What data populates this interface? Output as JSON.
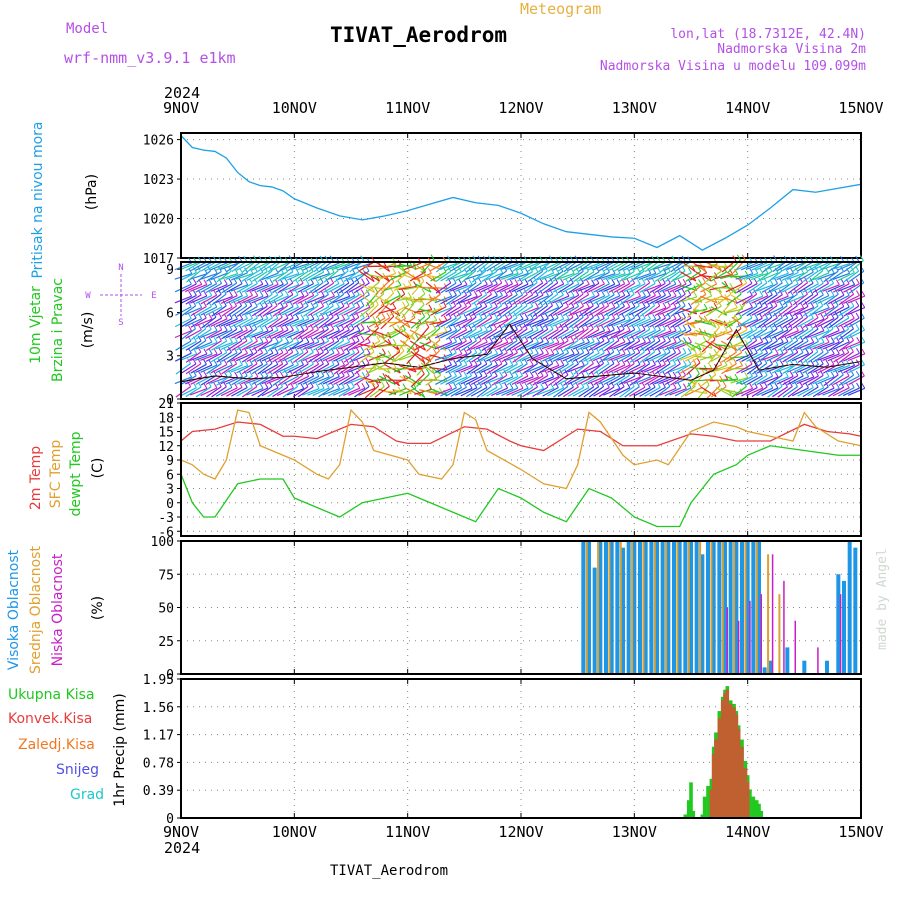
{
  "header": {
    "model_label": "Model",
    "model_name": "wrf-nmm_v3.9.1 e1km",
    "title": "TIVAT_Aerodrom",
    "meteogram": "Meteogram",
    "lonlat": "lon,lat (18.7312E, 42.4N)",
    "elev": "Nadmorska Visina 2m",
    "elev_model": "Nadmorska Visina u modelu 109.099m",
    "footer": "TIVAT_Aerodrom",
    "watermark": "made by Angel"
  },
  "colors": {
    "pressure": "#1ea0e6",
    "temp2m": "#e83c3c",
    "sfc": "#e0a030",
    "dewpt": "#20c820",
    "high": "#1e96e6",
    "mid": "#e0a030",
    "low": "#c81ec8",
    "wind_title": "#20c820",
    "label_purple": "#b450e6",
    "snow": "#5050e6",
    "grad": "#1ec8c8",
    "konvek": "#e83c3c",
    "zaledj": "#f07820"
  },
  "chart_data": [
    {
      "type": "line",
      "panel": "pressure",
      "ylabel": [
        "Pritisak na nivou mora",
        "(hPa)"
      ],
      "ylim": [
        1017,
        1026.5
      ],
      "yticks": [
        "1017",
        "1020",
        "1023",
        "1026"
      ],
      "series": [
        {
          "name": "Pritisak na nivou mora",
          "x": [
            0,
            0.1,
            0.2,
            0.3,
            0.4,
            0.5,
            0.6,
            0.7,
            0.8,
            0.9,
            1.0,
            1.2,
            1.4,
            1.6,
            1.8,
            2.0,
            2.2,
            2.4,
            2.6,
            2.8,
            3.0,
            3.2,
            3.4,
            3.6,
            3.8,
            4.0,
            4.2,
            4.4,
            4.6,
            4.8,
            5.0,
            5.2,
            5.4,
            5.6,
            5.8,
            6.0
          ],
          "values": [
            1026.3,
            1025.4,
            1025.2,
            1025.1,
            1024.6,
            1023.5,
            1022.8,
            1022.5,
            1022.4,
            1022.1,
            1021.5,
            1020.8,
            1020.2,
            1019.9,
            1020.2,
            1020.6,
            1021.1,
            1021.6,
            1021.2,
            1021.0,
            1020.4,
            1019.6,
            1019.0,
            1018.8,
            1018.6,
            1018.5,
            1017.8,
            1018.7,
            1017.6,
            1018.5,
            1019.5,
            1020.8,
            1022.2,
            1022.0,
            1022.3,
            1022.6
          ]
        }
      ]
    },
    {
      "type": "line",
      "panel": "wind",
      "ylabel": [
        "10m Vjetar",
        "Brzina i Pravac",
        "(m/s)"
      ],
      "compass": [
        "N",
        "W",
        "E",
        "S"
      ],
      "ylim": [
        0,
        9.5
      ],
      "yticks": [
        "0",
        "3",
        "6",
        "9"
      ],
      "series": [
        {
          "name": "speed",
          "x": [
            0,
            0.3,
            0.6,
            0.9,
            1.2,
            1.5,
            1.8,
            2.1,
            2.4,
            2.7,
            2.9,
            3.1,
            3.4,
            3.7,
            4.0,
            4.3,
            4.5,
            4.7,
            4.9,
            5.1,
            5.4,
            5.7,
            6.0
          ],
          "values": [
            1.2,
            1.6,
            1.4,
            1.5,
            1.9,
            2.2,
            2.5,
            2.2,
            2.8,
            3.1,
            5.2,
            2.8,
            1.4,
            1.6,
            1.8,
            1.5,
            1.3,
            2.0,
            4.8,
            2.0,
            2.4,
            2.2,
            2.6
          ]
        }
      ]
    },
    {
      "type": "line",
      "panel": "temperature",
      "ylabel": [
        "2m Temp",
        "SFC Temp",
        "dewpt Temp",
        "(C)"
      ],
      "ylim": [
        -7,
        21
      ],
      "yticks": [
        "-6",
        "-3",
        "0",
        "3",
        "6",
        "9",
        "12",
        "15",
        "18",
        "21"
      ],
      "series": [
        {
          "name": "2m Temp",
          "x": [
            0,
            0.1,
            0.3,
            0.5,
            0.7,
            0.9,
            1.0,
            1.2,
            1.5,
            1.7,
            1.9,
            2.0,
            2.2,
            2.5,
            2.7,
            2.9,
            3.0,
            3.2,
            3.5,
            3.7,
            3.9,
            4.0,
            4.2,
            4.5,
            4.7,
            4.9,
            5.0,
            5.2,
            5.5,
            5.7,
            5.9,
            6.0
          ],
          "values": [
            13,
            15,
            15.5,
            17,
            16.5,
            14,
            14,
            13.5,
            16.5,
            16,
            13,
            12.5,
            12.5,
            16,
            15.5,
            13,
            12,
            11,
            15.5,
            15,
            12,
            12,
            12,
            14.5,
            14,
            13,
            13,
            13,
            16.5,
            15,
            14.5,
            14
          ]
        },
        {
          "name": "SFC Temp",
          "x": [
            0,
            0.1,
            0.2,
            0.3,
            0.4,
            0.5,
            0.6,
            0.7,
            1.0,
            1.2,
            1.3,
            1.4,
            1.5,
            1.6,
            1.7,
            2.0,
            2.1,
            2.3,
            2.4,
            2.5,
            2.6,
            2.7,
            3.0,
            3.2,
            3.4,
            3.5,
            3.6,
            3.7,
            3.9,
            4.0,
            4.2,
            4.3,
            4.5,
            4.7,
            4.9,
            5.0,
            5.2,
            5.4,
            5.5,
            5.6,
            5.8,
            6.0
          ],
          "values": [
            9,
            8,
            6,
            5,
            9,
            19.5,
            19,
            12,
            9,
            6,
            5,
            8,
            19.5,
            17,
            11,
            9,
            6,
            5,
            8,
            19,
            17.5,
            11,
            7,
            4,
            3,
            8,
            19,
            17,
            10,
            8,
            9,
            8,
            15,
            17,
            16,
            15,
            14,
            13,
            19,
            16,
            13,
            12
          ]
        },
        {
          "name": "dewpt Temp",
          "x": [
            0,
            0.1,
            0.2,
            0.3,
            0.5,
            0.7,
            0.9,
            1.0,
            1.2,
            1.4,
            1.6,
            1.8,
            2.0,
            2.2,
            2.4,
            2.6,
            2.8,
            3.0,
            3.2,
            3.4,
            3.6,
            3.8,
            4.0,
            4.2,
            4.4,
            4.5,
            4.7,
            4.9,
            5.0,
            5.2,
            5.5,
            5.8,
            6.0
          ],
          "values": [
            6,
            0,
            -3,
            -3,
            4,
            5,
            5,
            1,
            -1,
            -3,
            0,
            1,
            2,
            0,
            -2,
            -4,
            3,
            1,
            -2,
            -4,
            3,
            1,
            -3,
            -5,
            -5,
            0,
            6,
            8,
            10,
            12,
            11,
            10,
            10
          ]
        }
      ]
    },
    {
      "type": "bar",
      "panel": "clouds",
      "ylabel": [
        "Visoka Oblacnost",
        "Srednja Oblacnost",
        "Niska Oblacnost",
        "(%)"
      ],
      "ylim": [
        0,
        100
      ],
      "yticks": [
        "0",
        "25",
        "50",
        "75",
        "100"
      ],
      "series": [
        {
          "name": "Visoka Oblacnost",
          "x": [
            3.55,
            3.6,
            3.65,
            3.7,
            3.75,
            3.8,
            3.85,
            3.9,
            3.95,
            4.0,
            4.05,
            4.1,
            4.15,
            4.2,
            4.25,
            4.3,
            4.35,
            4.4,
            4.45,
            4.5,
            4.55,
            4.6,
            4.65,
            4.7,
            4.75,
            4.8,
            4.85,
            4.9,
            4.95,
            5.0,
            5.05,
            5.1,
            5.15,
            5.2,
            5.25,
            5.3,
            5.35,
            5.4,
            5.45,
            5.5,
            5.55,
            5.6,
            5.65,
            5.7,
            5.75,
            5.8,
            5.85,
            5.9,
            5.95
          ],
          "values": [
            100,
            100,
            80,
            100,
            100,
            100,
            100,
            95,
            100,
            100,
            100,
            100,
            100,
            100,
            100,
            100,
            100,
            100,
            100,
            100,
            100,
            90,
            100,
            100,
            100,
            100,
            100,
            100,
            100,
            100,
            100,
            100,
            5,
            10,
            0,
            0,
            20,
            0,
            0,
            10,
            0,
            0,
            0,
            10,
            0,
            75,
            70,
            100,
            95
          ]
        },
        {
          "name": "Srednja Oblacnost",
          "x": [
            3.58,
            3.68,
            3.78,
            3.88,
            3.98,
            4.08,
            4.18,
            4.28,
            4.38,
            4.48,
            4.58,
            4.68,
            4.78,
            4.88,
            4.98,
            5.08,
            5.18,
            5.28,
            5.38,
            5.48,
            5.58,
            5.68,
            5.78,
            5.88
          ],
          "values": [
            100,
            100,
            100,
            100,
            100,
            100,
            100,
            100,
            100,
            100,
            100,
            100,
            100,
            100,
            100,
            100,
            90,
            60,
            0,
            0,
            0,
            0,
            0,
            0
          ]
        },
        {
          "name": "Niska Oblacnost",
          "x": [
            3.62,
            3.72,
            3.82,
            3.92,
            4.02,
            4.12,
            4.22,
            4.32,
            4.42,
            4.52,
            4.62,
            4.72,
            4.82,
            4.92,
            5.02,
            5.12,
            5.22,
            5.32,
            5.42,
            5.52,
            5.62,
            5.72,
            5.82,
            5.92
          ],
          "values": [
            0,
            0,
            0,
            0,
            0,
            0,
            0,
            0,
            0,
            0,
            0,
            0,
            50,
            40,
            55,
            60,
            90,
            70,
            40,
            0,
            20,
            0,
            60,
            0
          ]
        }
      ]
    },
    {
      "type": "bar",
      "panel": "precip",
      "ylabel": [
        "1hr Precip (mm)"
      ],
      "legend": [
        "Ukupna Kisa",
        "Konvek.Kisa",
        "Zaledj.Kisa",
        "Snijeg",
        "Grad"
      ],
      "ylim": [
        0,
        1.95
      ],
      "yticks": [
        "0",
        "0.39",
        "0.78",
        "1.17",
        "1.56",
        "1.95"
      ],
      "series": [
        {
          "name": "Ukupna Kisa",
          "x": [
            4.45,
            4.48,
            4.5,
            4.52,
            4.6,
            4.62,
            4.65,
            4.68,
            4.7,
            4.72,
            4.75,
            4.78,
            4.8,
            4.82,
            4.85,
            4.88,
            4.9,
            4.92,
            4.95,
            4.98,
            5.0,
            5.02,
            5.05,
            5.08,
            5.1,
            5.12
          ],
          "values": [
            0.05,
            0.25,
            0.5,
            0.1,
            0.05,
            0.3,
            0.45,
            0.55,
            1.0,
            1.2,
            1.5,
            1.7,
            1.8,
            1.85,
            1.65,
            1.6,
            1.5,
            1.3,
            1.1,
            0.8,
            0.6,
            0.4,
            0.3,
            0.25,
            0.2,
            0.1
          ]
        },
        {
          "name": "Konvek.Kisa",
          "x": [
            4.68,
            4.7,
            4.72,
            4.75,
            4.78,
            4.8,
            4.82,
            4.85,
            4.88,
            4.9,
            4.92,
            4.95,
            4.98,
            5.0
          ],
          "values": [
            0.4,
            0.9,
            1.1,
            1.4,
            1.65,
            1.75,
            1.8,
            1.6,
            1.55,
            1.45,
            1.25,
            1.0,
            0.7,
            0.5
          ]
        }
      ]
    }
  ],
  "x_axis": {
    "year": "2024",
    "labels": [
      "9NOV",
      "10NOV",
      "11NOV",
      "12NOV",
      "13NOV",
      "14NOV",
      "15NOV"
    ]
  }
}
